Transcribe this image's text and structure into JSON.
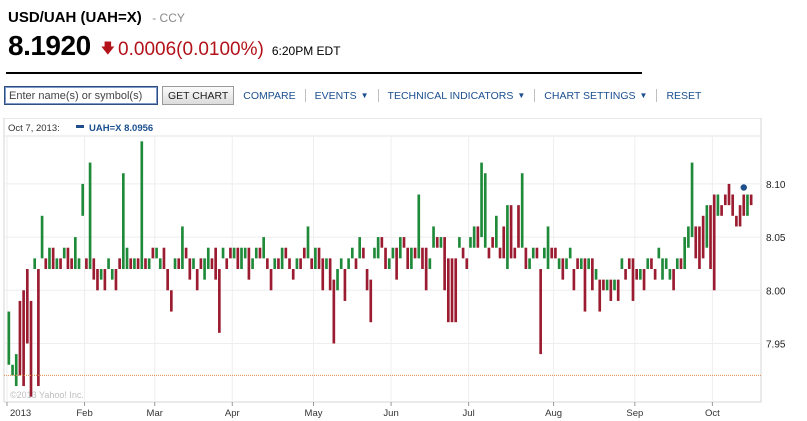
{
  "header": {
    "title": "USD/UAH (UAH=X)",
    "exchange": "- CCY"
  },
  "quote": {
    "price": "8.1920",
    "change": "0.0006",
    "change_pct": "(0.0100%)",
    "time": "6:20PM EDT",
    "direction_icon": "down-arrow-icon"
  },
  "toolbar": {
    "search_placeholder": "Enter name(s) or symbol(s)",
    "get_chart": "GET CHART",
    "compare": "COMPARE",
    "events": "EVENTS",
    "technical_indicators": "TECHNICAL INDICATORS",
    "chart_settings": "CHART SETTINGS",
    "reset": "RESET"
  },
  "legend": {
    "date": "Oct 7, 2013:",
    "series": "UAH=X",
    "value": "8.0956"
  },
  "watermark": "©2013 Yahoo! Inc.",
  "colors": {
    "up": "#1f8a3a",
    "down": "#9b1b30",
    "accent": "#1b4f8f",
    "down_text": "#b3121a"
  },
  "chart_data": {
    "type": "candlestick",
    "x_start_date": "2013-01-02",
    "x_axis_labels": [
      "2013",
      "Feb",
      "Mar",
      "Apr",
      "May",
      "Jun",
      "Jul",
      "Aug",
      "Sep",
      "Oct"
    ],
    "y_ticks": [
      8.1,
      8.05,
      8.0,
      7.95
    ],
    "y_tick_labels": [
      "8.10",
      "8.05",
      "8.00",
      "7.95"
    ],
    "ylim": [
      7.895,
      8.145
    ],
    "grid": true,
    "reference_line": 7.92,
    "last_point": 8.0956,
    "candles": [
      [
        7.93,
        7.98
      ],
      [
        7.92,
        7.93
      ],
      [
        7.91,
        7.94
      ],
      [
        7.99,
        7.92
      ],
      [
        8.0,
        7.91
      ],
      [
        8.02,
        7.95
      ],
      [
        7.99,
        7.9
      ],
      [
        8.02,
        8.03
      ],
      [
        8.02,
        7.91
      ],
      [
        8.03,
        8.07
      ],
      [
        8.03,
        8.02
      ],
      [
        8.02,
        8.04
      ],
      [
        8.04,
        8.02
      ],
      [
        8.02,
        8.03
      ],
      [
        8.03,
        8.02
      ],
      [
        8.03,
        8.04
      ],
      [
        8.04,
        8.02
      ],
      [
        8.03,
        8.02
      ],
      [
        8.02,
        8.05
      ],
      [
        8.02,
        8.03
      ],
      [
        8.07,
        8.1
      ],
      [
        8.03,
        8.02
      ],
      [
        8.02,
        8.12
      ],
      [
        8.03,
        8.01
      ],
      [
        8.02,
        8.0
      ],
      [
        8.01,
        8.02
      ],
      [
        8.02,
        8.0
      ],
      [
        8.02,
        8.03
      ],
      [
        8.01,
        8.02
      ],
      [
        8.02,
        8.0
      ],
      [
        8.03,
        8.02
      ],
      [
        8.02,
        8.11
      ],
      [
        8.02,
        8.04
      ],
      [
        8.03,
        8.02
      ],
      [
        8.02,
        8.03
      ],
      [
        8.03,
        8.02
      ],
      [
        8.02,
        8.14
      ],
      [
        8.03,
        8.02
      ],
      [
        8.02,
        8.03
      ],
      [
        8.04,
        8.03
      ],
      [
        8.03,
        8.04
      ],
      [
        8.02,
        8.03
      ],
      [
        8.04,
        8.02
      ],
      [
        8.02,
        8.0
      ],
      [
        8.0,
        7.98
      ],
      [
        8.02,
        8.03
      ],
      [
        8.03,
        8.02
      ],
      [
        8.02,
        8.06
      ],
      [
        8.04,
        8.03
      ],
      [
        8.03,
        8.01
      ],
      [
        8.02,
        8.03
      ],
      [
        8.02,
        8.0
      ],
      [
        8.03,
        8.02
      ],
      [
        8.01,
        8.03
      ],
      [
        8.02,
        8.04
      ],
      [
        8.03,
        8.02
      ],
      [
        8.04,
        8.01
      ],
      [
        8.02,
        7.96
      ],
      [
        8.03,
        8.04
      ],
      [
        8.03,
        8.02
      ],
      [
        8.04,
        8.03
      ],
      [
        8.03,
        8.04
      ],
      [
        8.04,
        8.02
      ],
      [
        8.02,
        8.04
      ],
      [
        8.03,
        8.04
      ],
      [
        8.04,
        8.01
      ],
      [
        8.02,
        8.03
      ],
      [
        8.03,
        8.04
      ],
      [
        8.04,
        8.03
      ],
      [
        8.03,
        8.05
      ],
      [
        8.03,
        8.02
      ],
      [
        8.02,
        8.0
      ],
      [
        8.02,
        8.03
      ],
      [
        8.03,
        8.02
      ],
      [
        8.02,
        8.04
      ],
      [
        8.04,
        8.03
      ],
      [
        8.03,
        8.02
      ],
      [
        8.02,
        8.01
      ],
      [
        8.02,
        8.03
      ],
      [
        8.03,
        8.02
      ],
      [
        8.04,
        8.03
      ],
      [
        8.03,
        8.06
      ],
      [
        8.03,
        8.02
      ],
      [
        8.02,
        8.04
      ],
      [
        8.04,
        8.02
      ],
      [
        8.03,
        8.0
      ],
      [
        8.02,
        8.03
      ],
      [
        8.03,
        8.0
      ],
      [
        8.01,
        7.95
      ],
      [
        8.0,
        8.02
      ],
      [
        8.02,
        8.03
      ],
      [
        8.02,
        7.99
      ],
      [
        8.02,
        8.03
      ],
      [
        8.03,
        8.04
      ],
      [
        8.03,
        8.02
      ],
      [
        8.03,
        8.05
      ],
      [
        8.04,
        8.03
      ],
      [
        8.02,
        8.0
      ],
      [
        8.01,
        7.97
      ],
      [
        8.03,
        8.04
      ],
      [
        8.03,
        8.05
      ],
      [
        8.05,
        8.04
      ],
      [
        8.04,
        8.02
      ],
      [
        8.02,
        8.03
      ],
      [
        8.03,
        8.04
      ],
      [
        8.04,
        8.01
      ],
      [
        8.03,
        8.05
      ],
      [
        8.05,
        8.04
      ],
      [
        8.04,
        8.02
      ],
      [
        8.02,
        8.04
      ],
      [
        8.04,
        8.03
      ],
      [
        8.03,
        8.09
      ],
      [
        8.04,
        8.02
      ],
      [
        8.04,
        8.0
      ],
      [
        8.02,
        8.03
      ],
      [
        8.04,
        8.06
      ],
      [
        8.05,
        8.04
      ],
      [
        8.04,
        8.05
      ],
      [
        8.05,
        8.0
      ],
      [
        8.03,
        7.97
      ],
      [
        8.03,
        7.97
      ],
      [
        8.03,
        7.97
      ],
      [
        8.04,
        8.05
      ],
      [
        8.04,
        8.03
      ],
      [
        8.03,
        8.02
      ],
      [
        8.04,
        8.05
      ],
      [
        8.04,
        8.06
      ],
      [
        8.06,
        8.04
      ],
      [
        8.05,
        8.12
      ],
      [
        8.04,
        8.11
      ],
      [
        8.04,
        8.03
      ],
      [
        8.05,
        8.04
      ],
      [
        8.04,
        8.07
      ],
      [
        8.04,
        8.03
      ],
      [
        8.06,
        8.03
      ],
      [
        8.02,
        8.08
      ],
      [
        8.08,
        8.03
      ],
      [
        8.04,
        8.03
      ],
      [
        8.08,
        8.04
      ],
      [
        8.04,
        8.11
      ],
      [
        8.04,
        8.02
      ],
      [
        8.02,
        8.03
      ],
      [
        8.03,
        8.04
      ],
      [
        8.04,
        8.03
      ],
      [
        8.02,
        7.94
      ],
      [
        8.03,
        8.04
      ],
      [
        8.02,
        8.06
      ],
      [
        8.04,
        8.03
      ],
      [
        8.04,
        8.03
      ],
      [
        8.02,
        8.03
      ],
      [
        8.03,
        8.01
      ],
      [
        8.02,
        8.03
      ],
      [
        8.03,
        8.04
      ],
      [
        8.02,
        8.0
      ],
      [
        8.03,
        8.02
      ],
      [
        8.02,
        8.03
      ],
      [
        8.03,
        7.98
      ],
      [
        8.02,
        8.03
      ],
      [
        8.03,
        8.0
      ],
      [
        8.01,
        8.02
      ],
      [
        8.01,
        7.98
      ],
      [
        8.01,
        8.0
      ],
      [
        8.0,
        8.01
      ],
      [
        8.01,
        7.99
      ],
      [
        8.0,
        8.01
      ],
      [
        8.01,
        7.99
      ],
      [
        8.02,
        8.03
      ],
      [
        8.02,
        8.01
      ],
      [
        8.03,
        8.02
      ],
      [
        8.03,
        7.99
      ],
      [
        8.02,
        8.01
      ],
      [
        8.01,
        8.02
      ],
      [
        8.02,
        8.0
      ],
      [
        8.02,
        8.03
      ],
      [
        8.03,
        8.02
      ],
      [
        8.02,
        8.01
      ],
      [
        8.03,
        8.04
      ],
      [
        8.01,
        8.03
      ],
      [
        8.02,
        8.03
      ],
      [
        8.01,
        8.02
      ],
      [
        8.02,
        8.0
      ],
      [
        8.02,
        8.03
      ],
      [
        8.03,
        8.02
      ],
      [
        8.02,
        8.05
      ],
      [
        8.04,
        8.06
      ],
      [
        8.05,
        8.12
      ],
      [
        8.06,
        8.03
      ],
      [
        8.06,
        8.02
      ],
      [
        8.07,
        8.03
      ],
      [
        8.04,
        8.08
      ],
      [
        8.08,
        8.02
      ],
      [
        8.09,
        8.0
      ],
      [
        8.07,
        8.09
      ],
      [
        8.08,
        8.07
      ],
      [
        8.09,
        8.08
      ],
      [
        8.1,
        8.08
      ],
      [
        8.09,
        8.07
      ],
      [
        8.07,
        8.06
      ],
      [
        8.08,
        8.06
      ],
      [
        8.09,
        8.07
      ],
      [
        8.07,
        8.09
      ],
      [
        8.09,
        8.08
      ]
    ]
  }
}
